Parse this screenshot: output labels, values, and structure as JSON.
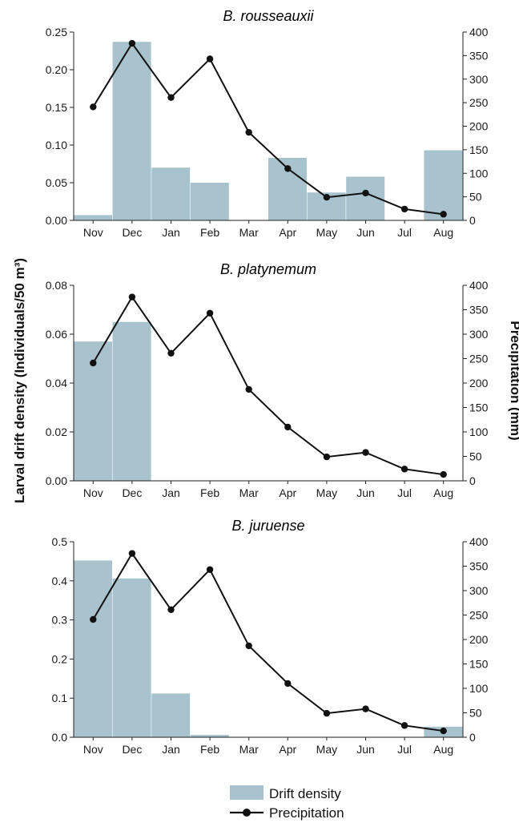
{
  "figure": {
    "left_axis_label": "Larval drift density (Individuals/50 m³)",
    "right_axis_label": "Precipitation (mm)"
  },
  "colors": {
    "bar": "#a8c3cd",
    "line": "#111111"
  },
  "legend": {
    "placement": "bottom-center",
    "items": [
      {
        "label": "Drift density",
        "kind": "bar"
      },
      {
        "label": "Precipitation",
        "kind": "line"
      }
    ]
  },
  "chart_data": [
    {
      "type": "bar",
      "title": "B. rousseauxii",
      "categories": [
        "Nov",
        "Dec",
        "Jan",
        "Feb",
        "Mar",
        "Apr",
        "May",
        "Jun",
        "Jul",
        "Aug"
      ],
      "series": [
        {
          "name": "Drift density",
          "type": "bar",
          "axis": "left",
          "values": [
            0.007,
            0.237,
            0.07,
            0.05,
            0.0,
            0.083,
            0.037,
            0.058,
            0.0,
            0.093
          ]
        },
        {
          "name": "Precipitation",
          "type": "line",
          "axis": "right",
          "values": [
            241,
            376,
            261,
            343,
            187,
            110,
            49,
            58,
            24,
            13
          ]
        }
      ],
      "ylim_left": [
        0,
        0.25
      ],
      "yticks_left": [
        "0.00",
        "0.05",
        "0.10",
        "0.15",
        "0.20",
        "0.25"
      ],
      "ylim_right": [
        0,
        400
      ],
      "yticks_right": [
        "0",
        "50",
        "100",
        "150",
        "200",
        "250",
        "300",
        "350",
        "400"
      ]
    },
    {
      "type": "bar",
      "title": "B. platynemum",
      "categories": [
        "Nov",
        "Dec",
        "Jan",
        "Feb",
        "Mar",
        "Apr",
        "May",
        "Jun",
        "Jul",
        "Aug"
      ],
      "series": [
        {
          "name": "Drift density",
          "type": "bar",
          "axis": "left",
          "values": [
            0.057,
            0.065,
            0.0,
            0.0,
            0.0,
            0.0,
            0.0,
            0.0,
            0.0,
            0.0
          ]
        },
        {
          "name": "Precipitation",
          "type": "line",
          "axis": "right",
          "values": [
            241,
            376,
            261,
            343,
            187,
            110,
            49,
            58,
            24,
            13
          ]
        }
      ],
      "ylim_left": [
        0,
        0.08
      ],
      "yticks_left": [
        "0.00",
        "0.02",
        "0.04",
        "0.06",
        "0.08"
      ],
      "ylim_right": [
        0,
        400
      ],
      "yticks_right": [
        "0",
        "50",
        "100",
        "150",
        "200",
        "250",
        "300",
        "350",
        "400"
      ]
    },
    {
      "type": "bar",
      "title": "B. juruense",
      "categories": [
        "Nov",
        "Dec",
        "Jan",
        "Feb",
        "Mar",
        "Apr",
        "May",
        "Jun",
        "Jul",
        "Aug"
      ],
      "series": [
        {
          "name": "Drift density",
          "type": "bar",
          "axis": "left",
          "values": [
            0.452,
            0.406,
            0.112,
            0.006,
            0.0,
            0.0,
            0.0,
            0.0,
            0.0,
            0.027
          ]
        },
        {
          "name": "Precipitation",
          "type": "line",
          "axis": "right",
          "values": [
            241,
            376,
            261,
            343,
            187,
            110,
            49,
            58,
            24,
            13
          ]
        }
      ],
      "ylim_left": [
        0,
        0.5
      ],
      "yticks_left": [
        "0.0",
        "0.1",
        "0.2",
        "0.3",
        "0.4",
        "0.5"
      ],
      "ylim_right": [
        0,
        400
      ],
      "yticks_right": [
        "0",
        "50",
        "100",
        "150",
        "200",
        "250",
        "300",
        "350",
        "400"
      ]
    }
  ]
}
